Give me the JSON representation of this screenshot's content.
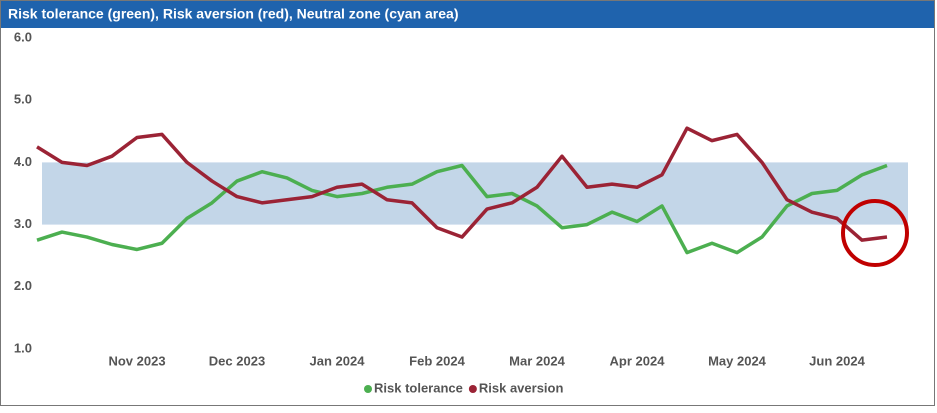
{
  "chart_data": {
    "type": "line",
    "title": "Risk tolerance (green), Risk aversion (red), Neutral zone (cyan area)",
    "categories": [
      null,
      null,
      null,
      null,
      "Nov 2023",
      null,
      null,
      null,
      "Dec 2023",
      null,
      null,
      null,
      "Jan 2024",
      null,
      null,
      null,
      "Feb 2024",
      null,
      null,
      null,
      "Mar 2024",
      null,
      null,
      null,
      "Apr 2024",
      null,
      null,
      null,
      "May 2024",
      null,
      null,
      null,
      "Jun 2024",
      null,
      null
    ],
    "series": [
      {
        "name": "Risk tolerance",
        "color": "#4caf50",
        "values": [
          2.75,
          2.88,
          2.8,
          2.68,
          2.6,
          2.7,
          3.1,
          3.35,
          3.7,
          3.85,
          3.75,
          3.55,
          3.45,
          3.5,
          3.6,
          3.65,
          3.85,
          3.95,
          3.45,
          3.5,
          3.3,
          2.95,
          3.0,
          3.2,
          3.05,
          3.3,
          2.55,
          2.7,
          2.55,
          2.8,
          3.3,
          3.5,
          3.55,
          3.8,
          3.95
        ]
      },
      {
        "name": "Risk aversion",
        "color": "#9b2335",
        "values": [
          4.25,
          4.0,
          3.95,
          4.1,
          4.4,
          4.45,
          4.0,
          3.7,
          3.45,
          3.35,
          3.4,
          3.45,
          3.6,
          3.65,
          3.4,
          3.35,
          2.95,
          2.8,
          3.25,
          3.35,
          3.6,
          4.1,
          3.6,
          3.65,
          3.6,
          3.8,
          4.55,
          4.35,
          4.45,
          4.0,
          3.4,
          3.2,
          3.1,
          2.75,
          2.8
        ]
      }
    ],
    "neutral_zone": [
      3,
      4
    ],
    "neutral_color": "#c3d6e8",
    "ylim": [
      1,
      6
    ],
    "yticks": [
      {
        "value": 1,
        "label": "1.0"
      },
      {
        "value": 2,
        "label": "2.0"
      },
      {
        "value": 3,
        "label": "3.0"
      },
      {
        "value": 4,
        "label": "4.0"
      },
      {
        "value": 5,
        "label": "5.0"
      },
      {
        "value": 6,
        "label": "6.0"
      }
    ],
    "legend": "bottom"
  }
}
